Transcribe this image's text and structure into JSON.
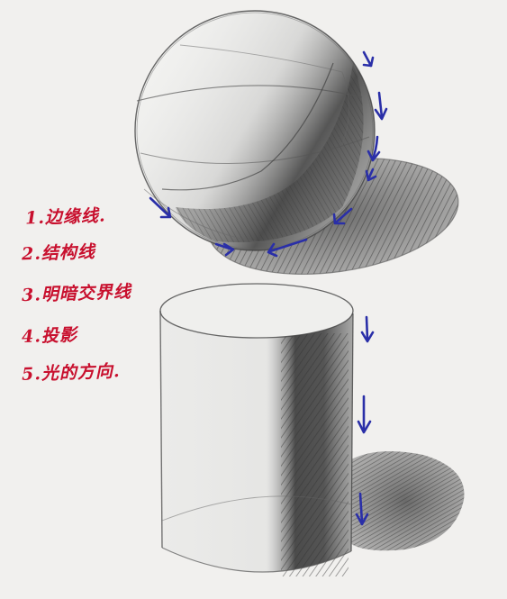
{
  "annotations": [
    {
      "text": "1.边缘线."
    },
    {
      "text": "2.结构线"
    },
    {
      "text": "3.明暗交界线"
    },
    {
      "text": "4.投影"
    },
    {
      "text": "5.光的方向."
    }
  ],
  "colors": {
    "paper": "#f1f0ee",
    "pencil": "#3a3a3a",
    "annotation_red": "#c8102e",
    "arrow_blue": "#2a2fa8"
  },
  "objects": [
    "sphere",
    "cylinder"
  ]
}
